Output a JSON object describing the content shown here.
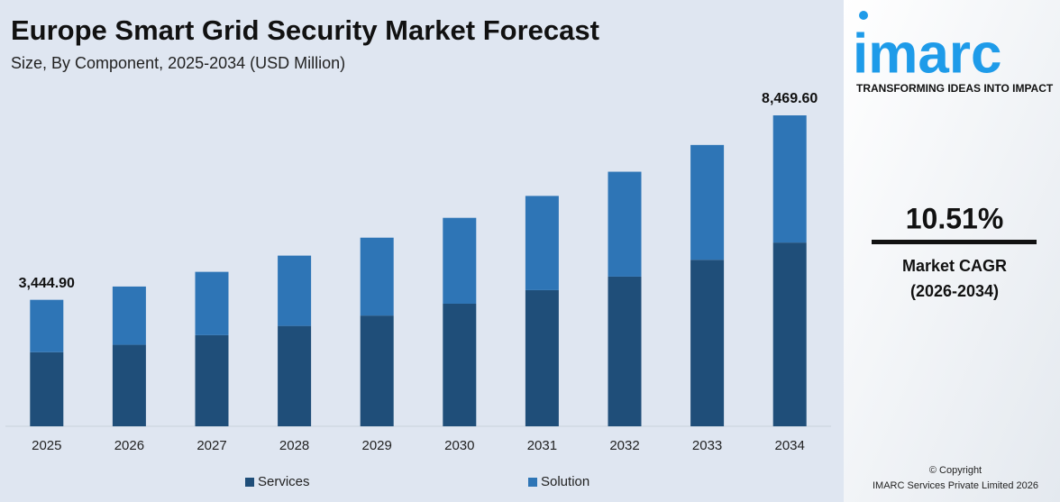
{
  "chart_data": {
    "type": "stacked_bar",
    "title": "Europe Smart Grid Security Market Forecast",
    "subtitle": "Size, By Component, 2025-2034 (USD Million)",
    "categories": [
      "2025",
      "2026",
      "2027",
      "2028",
      "2029",
      "2030",
      "2031",
      "2032",
      "2033",
      "2034"
    ],
    "series": [
      {
        "name": "Services",
        "color": "#1f4e79",
        "values": [
          2018,
          2220,
          2482,
          2734,
          3016,
          3339,
          3709,
          4077,
          4536,
          5005
        ]
      },
      {
        "name": "Solution",
        "color": "#2e75b6",
        "values": [
          1426.9,
          1587,
          1725,
          1915,
          2122,
          2339,
          2566,
          2857,
          3127,
          3464.6
        ]
      }
    ],
    "annotations": [
      {
        "category": "2025",
        "value": 3444.9,
        "label": "3,444.90"
      },
      {
        "category": "2034",
        "value": 8469.6,
        "label": "8,469.60"
      }
    ]
  },
  "side_panel": {
    "logo": "imarc",
    "tagline": "TRANSFORMING IDEAS INTO IMPACT",
    "cagr": "10.51%",
    "cagr_label": "Market CAGR",
    "cagr_period": "(2026-2034)",
    "copyright": "© Copyright",
    "company": "IMARC Services Private Limited 2026"
  }
}
